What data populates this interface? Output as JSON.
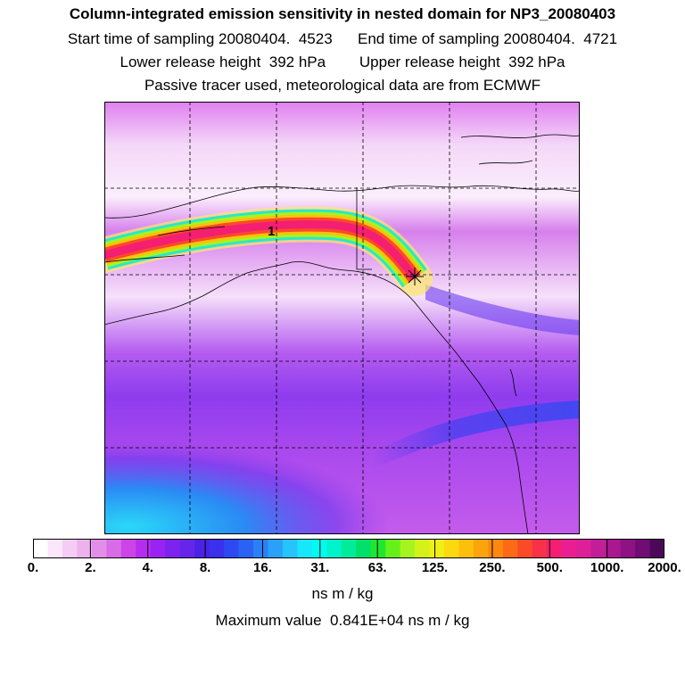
{
  "header": {
    "title": "Column-integrated emission sensitivity in nested domain for NP3_20080403",
    "sampling": "Start time of sampling 20080404.  4523      End time of sampling 20080404.  4721",
    "release": "Lower release height  392 hPa        Upper release height  392 hPa",
    "source": "Passive tracer used, meteorological data are from ECMWF"
  },
  "map": {
    "plume_label": "1",
    "receptor_marker": "star-marker"
  },
  "colorbar": {
    "tick_labels": [
      "0.",
      "2.",
      "4.",
      "8.",
      "16.",
      "31.",
      "63.",
      "125.",
      "250.",
      "500.",
      "1000.",
      "2000."
    ],
    "unit": "ns m / kg",
    "colors": [
      "#ffffff",
      "#fbe6fb",
      "#f4ccf4",
      "#ecb2ee",
      "#e28ee8",
      "#d86ce6",
      "#cc44e8",
      "#b62cf0",
      "#9a22f2",
      "#7e22ee",
      "#6626ea",
      "#4a22e6",
      "#3a30ee",
      "#2e48f2",
      "#2a62f4",
      "#2a80f6",
      "#2aa0f8",
      "#26c4fa",
      "#18e6fa",
      "#00fcf0",
      "#00f4cc",
      "#00ec9a",
      "#00e06a",
      "#1ee82e",
      "#66f01a",
      "#a6f41e",
      "#d4f21a",
      "#f0ee14",
      "#fcd80e",
      "#fcc00c",
      "#fca40c",
      "#fc880e",
      "#fc6a16",
      "#fa4a28",
      "#f8304a",
      "#f41e72",
      "#ea1e90",
      "#dc2098",
      "#c21e98",
      "#aa1890",
      "#8e1284",
      "#700c74",
      "#4c0858"
    ]
  },
  "max_value": "Maximum value  0.841E+04 ns m / kg"
}
